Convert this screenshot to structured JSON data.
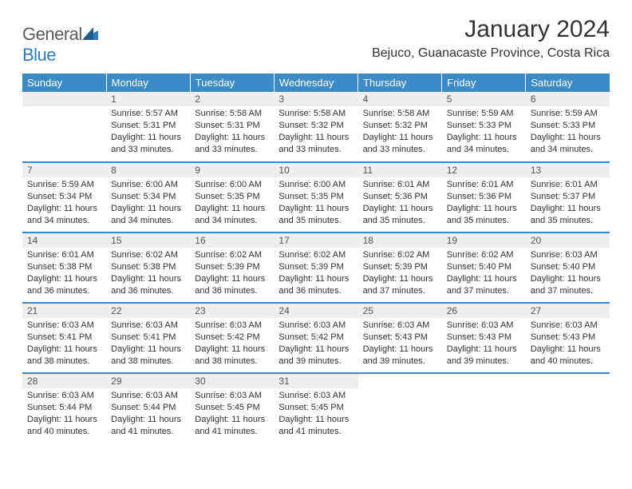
{
  "brand": {
    "name_a": "General",
    "name_b": "Blue"
  },
  "title": "January 2024",
  "location": "Bejuco, Guanacaste Province, Costa Rica",
  "colors": {
    "header_bg": "#3b8bc8",
    "header_fg": "#ffffff",
    "daynum_bg": "#eeeeee",
    "rule": "#3b8bc8",
    "text": "#333333"
  },
  "weekdays": [
    "Sunday",
    "Monday",
    "Tuesday",
    "Wednesday",
    "Thursday",
    "Friday",
    "Saturday"
  ],
  "grid": {
    "cols": 7,
    "rows": 5,
    "start_col": 1
  },
  "days": [
    {
      "n": "1",
      "sr": "Sunrise: 5:57 AM",
      "ss": "Sunset: 5:31 PM",
      "dl": "Daylight: 11 hours and 33 minutes."
    },
    {
      "n": "2",
      "sr": "Sunrise: 5:58 AM",
      "ss": "Sunset: 5:31 PM",
      "dl": "Daylight: 11 hours and 33 minutes."
    },
    {
      "n": "3",
      "sr": "Sunrise: 5:58 AM",
      "ss": "Sunset: 5:32 PM",
      "dl": "Daylight: 11 hours and 33 minutes."
    },
    {
      "n": "4",
      "sr": "Sunrise: 5:58 AM",
      "ss": "Sunset: 5:32 PM",
      "dl": "Daylight: 11 hours and 33 minutes."
    },
    {
      "n": "5",
      "sr": "Sunrise: 5:59 AM",
      "ss": "Sunset: 5:33 PM",
      "dl": "Daylight: 11 hours and 34 minutes."
    },
    {
      "n": "6",
      "sr": "Sunrise: 5:59 AM",
      "ss": "Sunset: 5:33 PM",
      "dl": "Daylight: 11 hours and 34 minutes."
    },
    {
      "n": "7",
      "sr": "Sunrise: 5:59 AM",
      "ss": "Sunset: 5:34 PM",
      "dl": "Daylight: 11 hours and 34 minutes."
    },
    {
      "n": "8",
      "sr": "Sunrise: 6:00 AM",
      "ss": "Sunset: 5:34 PM",
      "dl": "Daylight: 11 hours and 34 minutes."
    },
    {
      "n": "9",
      "sr": "Sunrise: 6:00 AM",
      "ss": "Sunset: 5:35 PM",
      "dl": "Daylight: 11 hours and 34 minutes."
    },
    {
      "n": "10",
      "sr": "Sunrise: 6:00 AM",
      "ss": "Sunset: 5:35 PM",
      "dl": "Daylight: 11 hours and 35 minutes."
    },
    {
      "n": "11",
      "sr": "Sunrise: 6:01 AM",
      "ss": "Sunset: 5:36 PM",
      "dl": "Daylight: 11 hours and 35 minutes."
    },
    {
      "n": "12",
      "sr": "Sunrise: 6:01 AM",
      "ss": "Sunset: 5:36 PM",
      "dl": "Daylight: 11 hours and 35 minutes."
    },
    {
      "n": "13",
      "sr": "Sunrise: 6:01 AM",
      "ss": "Sunset: 5:37 PM",
      "dl": "Daylight: 11 hours and 35 minutes."
    },
    {
      "n": "14",
      "sr": "Sunrise: 6:01 AM",
      "ss": "Sunset: 5:38 PM",
      "dl": "Daylight: 11 hours and 36 minutes."
    },
    {
      "n": "15",
      "sr": "Sunrise: 6:02 AM",
      "ss": "Sunset: 5:38 PM",
      "dl": "Daylight: 11 hours and 36 minutes."
    },
    {
      "n": "16",
      "sr": "Sunrise: 6:02 AM",
      "ss": "Sunset: 5:39 PM",
      "dl": "Daylight: 11 hours and 36 minutes."
    },
    {
      "n": "17",
      "sr": "Sunrise: 6:02 AM",
      "ss": "Sunset: 5:39 PM",
      "dl": "Daylight: 11 hours and 36 minutes."
    },
    {
      "n": "18",
      "sr": "Sunrise: 6:02 AM",
      "ss": "Sunset: 5:39 PM",
      "dl": "Daylight: 11 hours and 37 minutes."
    },
    {
      "n": "19",
      "sr": "Sunrise: 6:02 AM",
      "ss": "Sunset: 5:40 PM",
      "dl": "Daylight: 11 hours and 37 minutes."
    },
    {
      "n": "20",
      "sr": "Sunrise: 6:03 AM",
      "ss": "Sunset: 5:40 PM",
      "dl": "Daylight: 11 hours and 37 minutes."
    },
    {
      "n": "21",
      "sr": "Sunrise: 6:03 AM",
      "ss": "Sunset: 5:41 PM",
      "dl": "Daylight: 11 hours and 38 minutes."
    },
    {
      "n": "22",
      "sr": "Sunrise: 6:03 AM",
      "ss": "Sunset: 5:41 PM",
      "dl": "Daylight: 11 hours and 38 minutes."
    },
    {
      "n": "23",
      "sr": "Sunrise: 6:03 AM",
      "ss": "Sunset: 5:42 PM",
      "dl": "Daylight: 11 hours and 38 minutes."
    },
    {
      "n": "24",
      "sr": "Sunrise: 6:03 AM",
      "ss": "Sunset: 5:42 PM",
      "dl": "Daylight: 11 hours and 39 minutes."
    },
    {
      "n": "25",
      "sr": "Sunrise: 6:03 AM",
      "ss": "Sunset: 5:43 PM",
      "dl": "Daylight: 11 hours and 39 minutes."
    },
    {
      "n": "26",
      "sr": "Sunrise: 6:03 AM",
      "ss": "Sunset: 5:43 PM",
      "dl": "Daylight: 11 hours and 39 minutes."
    },
    {
      "n": "27",
      "sr": "Sunrise: 6:03 AM",
      "ss": "Sunset: 5:43 PM",
      "dl": "Daylight: 11 hours and 40 minutes."
    },
    {
      "n": "28",
      "sr": "Sunrise: 6:03 AM",
      "ss": "Sunset: 5:44 PM",
      "dl": "Daylight: 11 hours and 40 minutes."
    },
    {
      "n": "29",
      "sr": "Sunrise: 6:03 AM",
      "ss": "Sunset: 5:44 PM",
      "dl": "Daylight: 11 hours and 41 minutes."
    },
    {
      "n": "30",
      "sr": "Sunrise: 6:03 AM",
      "ss": "Sunset: 5:45 PM",
      "dl": "Daylight: 11 hours and 41 minutes."
    },
    {
      "n": "31",
      "sr": "Sunrise: 6:03 AM",
      "ss": "Sunset: 5:45 PM",
      "dl": "Daylight: 11 hours and 41 minutes."
    }
  ]
}
